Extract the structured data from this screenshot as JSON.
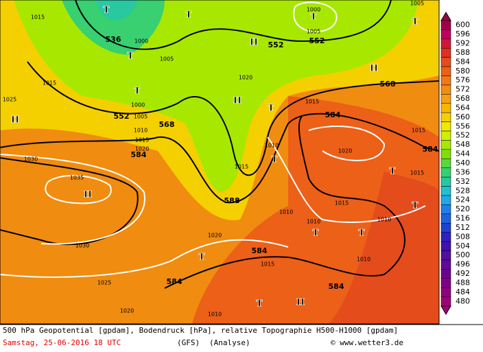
{
  "map": {
    "centers": [
      "T",
      "T",
      "T",
      "T",
      "H",
      "H",
      "T",
      "T",
      "H",
      "H",
      "T",
      "T",
      "H",
      "T",
      "T",
      "T",
      "T",
      "T",
      "T",
      "H"
    ],
    "geopotential_labels": [
      "536",
      "552",
      "552",
      "568",
      "552",
      "568",
      "584",
      "584",
      "584",
      "588",
      "584",
      "584",
      "584"
    ],
    "pressure_labels": [
      "1015",
      "1000",
      "1005",
      "1015",
      "1025",
      "1000",
      "1005",
      "1010",
      "1015",
      "1020",
      "1030",
      "1035",
      "1030",
      "1025",
      "1020",
      "1010",
      "1020",
      "1015",
      "1010",
      "1020",
      "1015",
      "1015",
      "1015",
      "1015",
      "1010",
      "1010",
      "1010",
      "1010",
      "1015",
      "1020",
      "1000",
      "1005",
      "1005"
    ],
    "legend": [
      {
        "value": 600,
        "color": "#a0004a"
      },
      {
        "value": 596,
        "color": "#c0005a"
      },
      {
        "value": 592,
        "color": "#d01838"
      },
      {
        "value": 588,
        "color": "#e03020"
      },
      {
        "value": 584,
        "color": "#e44c1c"
      },
      {
        "value": 580,
        "color": "#ec6018"
      },
      {
        "value": 576,
        "color": "#f07818"
      },
      {
        "value": 572,
        "color": "#f08c10"
      },
      {
        "value": 568,
        "color": "#f4a010"
      },
      {
        "value": 564,
        "color": "#f4b800"
      },
      {
        "value": 560,
        "color": "#f4d000"
      },
      {
        "value": 556,
        "color": "#f0e800"
      },
      {
        "value": 552,
        "color": "#d0f000"
      },
      {
        "value": 548,
        "color": "#a8e800"
      },
      {
        "value": 544,
        "color": "#80e000"
      },
      {
        "value": 540,
        "color": "#58d840"
      },
      {
        "value": 536,
        "color": "#38d070"
      },
      {
        "value": 532,
        "color": "#28c8a0"
      },
      {
        "value": 528,
        "color": "#20c0d0"
      },
      {
        "value": 524,
        "color": "#20a8e8"
      },
      {
        "value": 520,
        "color": "#2080e8"
      },
      {
        "value": 516,
        "color": "#2060e0"
      },
      {
        "value": 512,
        "color": "#2040d0"
      },
      {
        "value": 508,
        "color": "#3020c0"
      },
      {
        "value": 504,
        "color": "#4010b0"
      },
      {
        "value": 500,
        "color": "#5010a0"
      },
      {
        "value": 496,
        "color": "#600898"
      },
      {
        "value": 492,
        "color": "#700090"
      },
      {
        "value": 488,
        "color": "#800088"
      },
      {
        "value": 484,
        "color": "#900080"
      },
      {
        "value": 480,
        "color": "#a00078"
      }
    ]
  },
  "footer": {
    "line1": "500 hPa Geopotential [gpdam], Bodendruck [hPa], relative Topographie H500-H1000 [gpdam]",
    "date": "Samstag, 25-06-2016  18 UTC",
    "model": "(GFS)",
    "run": "(Analyse)",
    "credit": "© www.wetter3.de"
  }
}
